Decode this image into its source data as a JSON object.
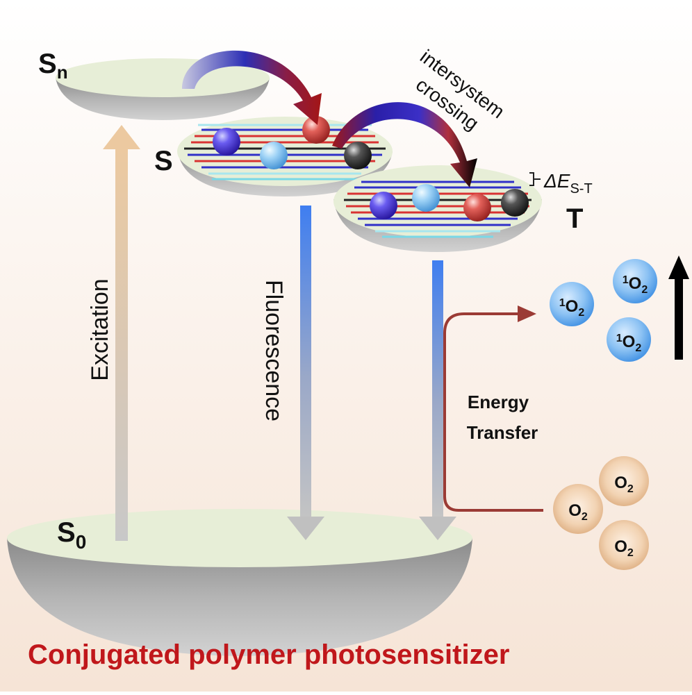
{
  "title": "Conjugated polymer photosensitizer",
  "levels": {
    "sn": "S",
    "sn_sub": "n",
    "s1": "S",
    "t": "T",
    "s0": "S",
    "s0_sub": "0"
  },
  "processes": {
    "excitation": "Excitation",
    "fluorescence": "Fluorescence",
    "isc_line1": "intersystem",
    "isc_line2": "crossing",
    "energy_line1": "Energy",
    "energy_line2": "Transfer"
  },
  "gap": {
    "delta": "ΔE",
    "sub": "S-T"
  },
  "oxygen": {
    "singlet_sup": "1",
    "symbol": "O",
    "sub": "2"
  },
  "colors": {
    "title": "#c0171b",
    "excitation_arrow": "#e9c9a2",
    "fluorescence_arrow": "#4f86ee",
    "energy_arrow": "#9b3b35",
    "singlet_oxygen": "#4f97e6",
    "oxygen": "#e8c29e"
  }
}
